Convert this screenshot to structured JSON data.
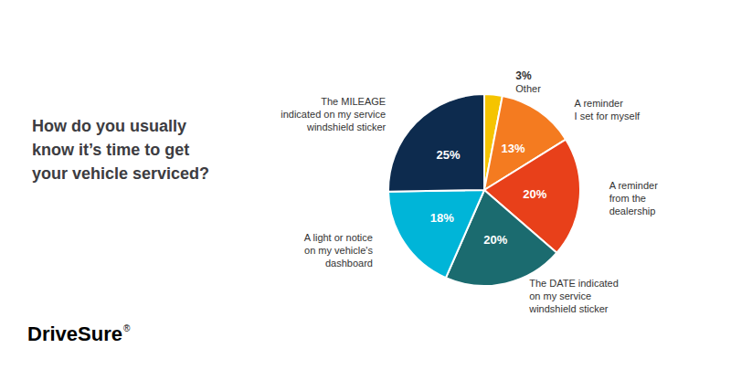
{
  "chart_data": {
    "type": "pie",
    "title": "How do you usually\nknow it’s time to get\nyour vehicle serviced?",
    "categories": [
      "Other",
      "A reminder\nI set for myself",
      "A reminder\nfrom the\ndealership",
      "The DATE indicated\non my service\nwindshield sticker",
      "A light or notice\non my vehicle's\ndashboard",
      "The MILEAGE\nindicated on my service\nwindshield sticker"
    ],
    "values": [
      3,
      13,
      20,
      20,
      18,
      25
    ],
    "value_labels": [
      "3%",
      "13%",
      "20%",
      "20%",
      "18%",
      "25%"
    ],
    "colors": [
      "#F5C400",
      "#F47B20",
      "#E8401A",
      "#1B6B6F",
      "#00B5D8",
      "#0D2B4E"
    ],
    "data_labels": true,
    "annotations": [
      {
        "text": "Drive",
        "color": "#0D2B4E"
      },
      {
        "text": "Sure",
        "color": "#1AB0D8"
      },
      {
        "text": "®",
        "color": "#1AB0D8"
      }
    ]
  }
}
